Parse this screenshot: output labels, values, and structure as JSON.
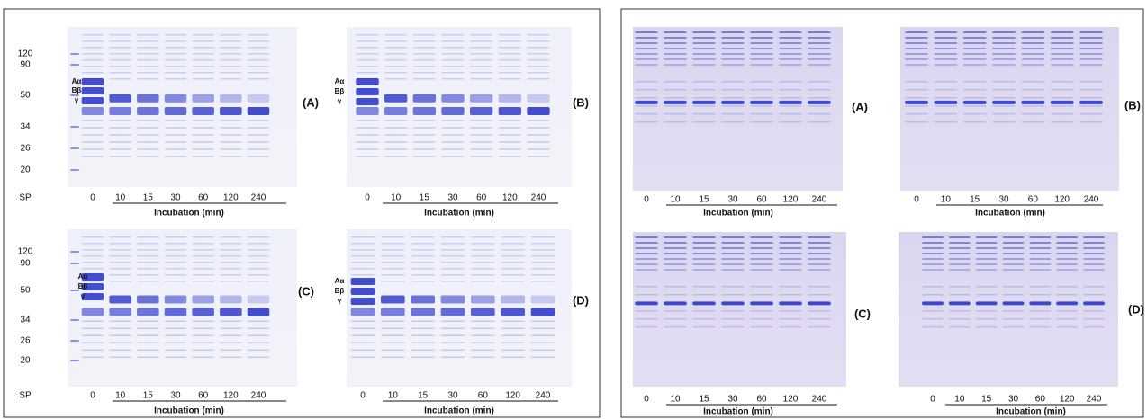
{
  "panels": [
    {
      "gels": [
        {
          "label": "(A)",
          "markers": [
            "120",
            "90",
            "50",
            "34",
            "26",
            "20"
          ],
          "chains": [
            "Aα",
            "Bβ",
            "γ"
          ],
          "lanes": [
            "SP",
            "0",
            "10",
            "15",
            "30",
            "60",
            "120",
            "240"
          ],
          "axis_title": "Incubation (min)"
        },
        {
          "label": "(B)",
          "chains": [
            "Aα",
            "Bβ",
            "γ"
          ],
          "lanes": [
            "0",
            "10",
            "15",
            "30",
            "60",
            "120",
            "240"
          ],
          "axis_title": "Incubation (min)"
        },
        {
          "label": "(C)",
          "markers": [
            "120",
            "90",
            "50",
            "34",
            "26",
            "20"
          ],
          "chains": [
            "Aα",
            "Bβ",
            "γ"
          ],
          "lanes": [
            "SP",
            "0",
            "10",
            "15",
            "30",
            "60",
            "120",
            "240"
          ],
          "axis_title": "Incubation (min)"
        },
        {
          "label": "(D)",
          "chains": [
            "Aα",
            "Bβ",
            "γ"
          ],
          "lanes": [
            "0",
            "10",
            "15",
            "30",
            "60",
            "120",
            "240"
          ],
          "axis_title": "Incubation (min)"
        }
      ]
    },
    {
      "gels": [
        {
          "label": "(A)",
          "lanes": [
            "0",
            "10",
            "15",
            "30",
            "60",
            "120",
            "240"
          ],
          "axis_title": "Incubation (min)"
        },
        {
          "label": "(B)",
          "lanes": [
            "0",
            "10",
            "15",
            "30",
            "60",
            "120",
            "240"
          ],
          "axis_title": "Incubation (min)"
        },
        {
          "label": "(C)",
          "lanes": [
            "0",
            "10",
            "15",
            "30",
            "60",
            "120",
            "240"
          ],
          "axis_title": "Incubation (min)"
        },
        {
          "label": "(D)",
          "lanes": [
            "0",
            "10",
            "15",
            "30",
            "60",
            "120",
            "240"
          ],
          "axis_title": "Incubation (min)"
        }
      ]
    }
  ]
}
